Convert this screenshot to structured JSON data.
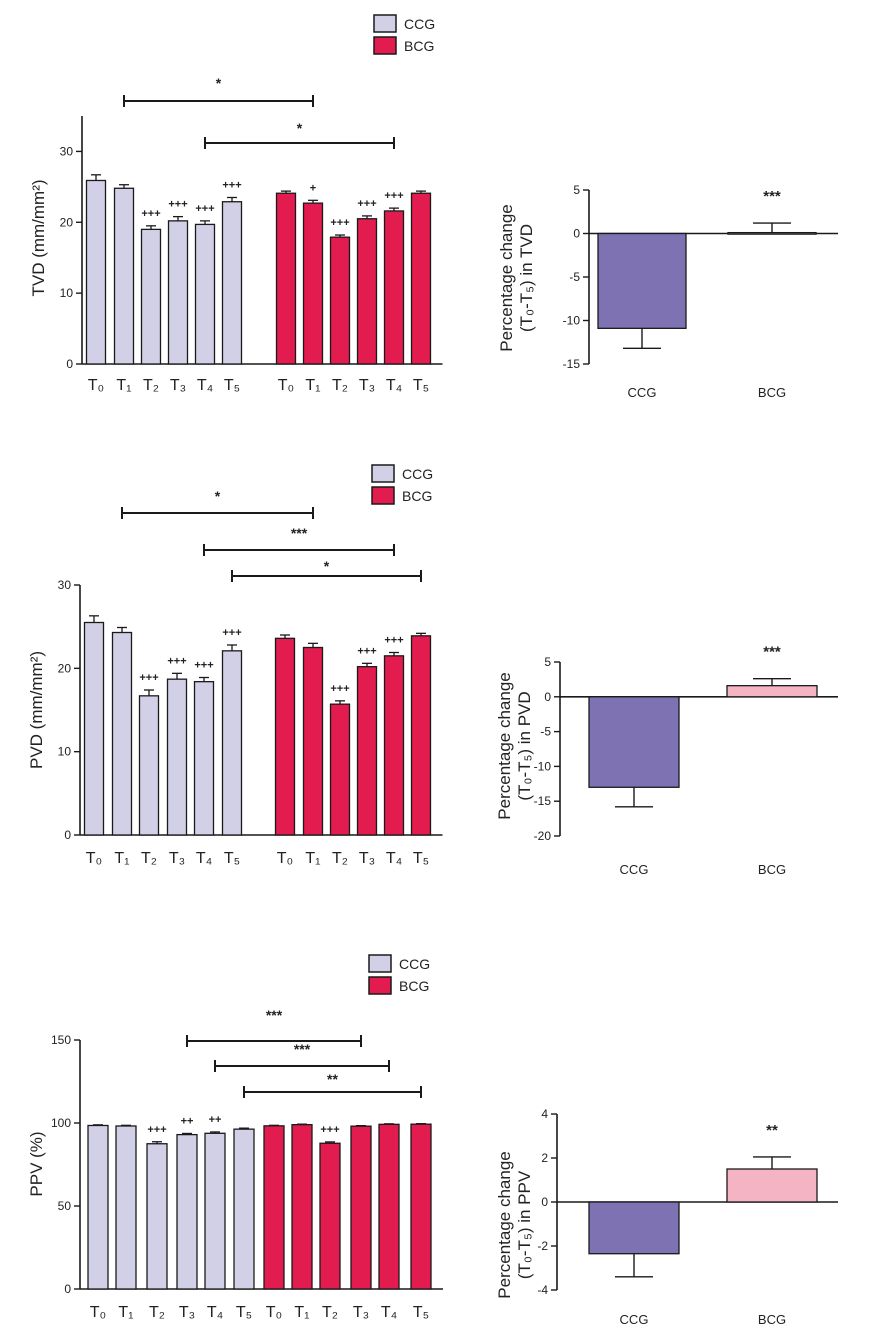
{
  "legend": {
    "ccg": "CCG",
    "bcg": "BCG"
  },
  "colors": {
    "ccg_bar": "#d2d0e6",
    "bcg_bar": "#e31c4f",
    "pct_ccg": "#7e72b3",
    "pct_bcg": "#f4b4c4",
    "axis": "#1a1a1a"
  },
  "chart_data": [
    {
      "type": "bar",
      "id": "tvd_time",
      "ylabel": "TVD (mm/mm²)",
      "ylim": [
        0,
        35
      ],
      "yticks": [
        0,
        10,
        20,
        30
      ],
      "xtick_labels": [
        "T₀",
        "T₁",
        "T₂",
        "T₃",
        "T₄",
        "T₅",
        "T₀",
        "T₁",
        "T₂",
        "T₃",
        "T₄",
        "T₅"
      ],
      "gap_after": 6,
      "series": [
        {
          "name": "CCG",
          "values": [
            25.9,
            24.8,
            19.0,
            20.2,
            19.7,
            22.9
          ],
          "errors": [
            0.8,
            0.5,
            0.5,
            0.6,
            0.5,
            0.6
          ],
          "annotations": [
            "",
            "",
            "+++",
            "+++",
            "+++",
            "+++"
          ]
        },
        {
          "name": "BCG",
          "values": [
            24.1,
            22.7,
            17.9,
            20.5,
            21.6,
            24.1
          ],
          "errors": [
            0.3,
            0.4,
            0.3,
            0.4,
            0.4,
            0.3
          ],
          "annotations": [
            "",
            "+",
            "+++",
            "+++",
            "+++",
            ""
          ]
        }
      ],
      "brackets": [
        {
          "from": 1,
          "to": 7,
          "label": "*"
        },
        {
          "from": 4,
          "to": 10,
          "label": "*"
        }
      ]
    },
    {
      "type": "bar",
      "id": "tvd_pct",
      "ylabel_lines": [
        "Percentage change",
        "(T₀-T₅) in TVD"
      ],
      "ylim": [
        -15,
        5
      ],
      "yticks": [
        -15,
        -10,
        -5,
        0,
        5
      ],
      "categories": [
        "CCG",
        "BCG"
      ],
      "values": [
        -10.9,
        0.1
      ],
      "errors": [
        2.3,
        1.1
      ],
      "annotations": [
        "",
        "***"
      ]
    },
    {
      "type": "bar",
      "id": "pvd_time",
      "ylabel": "PVD (mm/mm²)",
      "ylim": [
        0,
        30
      ],
      "yticks": [
        0,
        10,
        20,
        30
      ],
      "xtick_labels": [
        "T₀",
        "T₁",
        "T₂",
        "T₃",
        "T₄",
        "T₅",
        "T₀",
        "T₁",
        "T₂",
        "T₃",
        "T₄",
        "T₅"
      ],
      "gap_after": 6,
      "series": [
        {
          "name": "CCG",
          "values": [
            25.5,
            24.3,
            16.7,
            18.7,
            18.4,
            22.1
          ],
          "errors": [
            0.8,
            0.6,
            0.7,
            0.7,
            0.5,
            0.7
          ],
          "annotations": [
            "",
            "",
            "+++",
            "+++",
            "+++",
            "+++"
          ]
        },
        {
          "name": "BCG",
          "values": [
            23.6,
            22.5,
            15.7,
            20.2,
            21.5,
            23.9
          ],
          "errors": [
            0.4,
            0.5,
            0.4,
            0.4,
            0.4,
            0.3
          ],
          "annotations": [
            "",
            "",
            "+++",
            "+++",
            "+++",
            ""
          ]
        }
      ],
      "brackets": [
        {
          "from": 1,
          "to": 7,
          "label": "*"
        },
        {
          "from": 4,
          "to": 10,
          "label": "***"
        },
        {
          "from": 5,
          "to": 11,
          "label": "*"
        }
      ]
    },
    {
      "type": "bar",
      "id": "pvd_pct",
      "ylabel_lines": [
        "Percentage change",
        "(T₀-T₅) in PVD"
      ],
      "ylim": [
        -20,
        5
      ],
      "yticks": [
        -20,
        -15,
        -10,
        -5,
        0,
        5
      ],
      "categories": [
        "CCG",
        "BCG"
      ],
      "values": [
        -13.0,
        1.6
      ],
      "errors": [
        2.8,
        1.0
      ],
      "annotations": [
        "",
        "***"
      ]
    },
    {
      "type": "bar",
      "id": "ppv_time",
      "ylabel": "PPV (%)",
      "ylim": [
        0,
        150
      ],
      "yticks": [
        0,
        50,
        100,
        150
      ],
      "xtick_labels": [
        "T₀",
        "T₁",
        "T₂",
        "T₃",
        "T₄",
        "T₅",
        "T₀",
        "T₁",
        "T₂",
        "T₃",
        "T₄",
        "T₅"
      ],
      "gap_after": 0,
      "series": [
        {
          "name": "CCG",
          "values": [
            98.5,
            98.2,
            87.5,
            93.0,
            93.8,
            96.3
          ],
          "errors": [
            0.4,
            0.4,
            1.2,
            0.7,
            0.8,
            0.6
          ],
          "annotations": [
            "",
            "",
            "+++",
            "++",
            "++",
            ""
          ]
        },
        {
          "name": "BCG",
          "values": [
            98.3,
            99.0,
            87.8,
            98.1,
            99.2,
            99.3
          ],
          "errors": [
            0.3,
            0.3,
            0.8,
            0.3,
            0.3,
            0.3
          ],
          "annotations": [
            "",
            "",
            "+++",
            "",
            "",
            ""
          ]
        }
      ],
      "brackets": [
        {
          "from": 3,
          "to": 9,
          "label": "***"
        },
        {
          "from": 4,
          "to": 10,
          "label": "***"
        },
        {
          "from": 5,
          "to": 11,
          "label": "**"
        }
      ]
    },
    {
      "type": "bar",
      "id": "ppv_pct",
      "ylabel_lines": [
        "Percentage change",
        "(T₀-T₅) in PPV"
      ],
      "ylim": [
        -4,
        4
      ],
      "yticks": [
        -4,
        -2,
        0,
        2,
        4
      ],
      "categories": [
        "CCG",
        "BCG"
      ],
      "values": [
        -2.35,
        1.5
      ],
      "errors": [
        1.05,
        0.55
      ],
      "annotations": [
        "",
        "**"
      ]
    }
  ]
}
